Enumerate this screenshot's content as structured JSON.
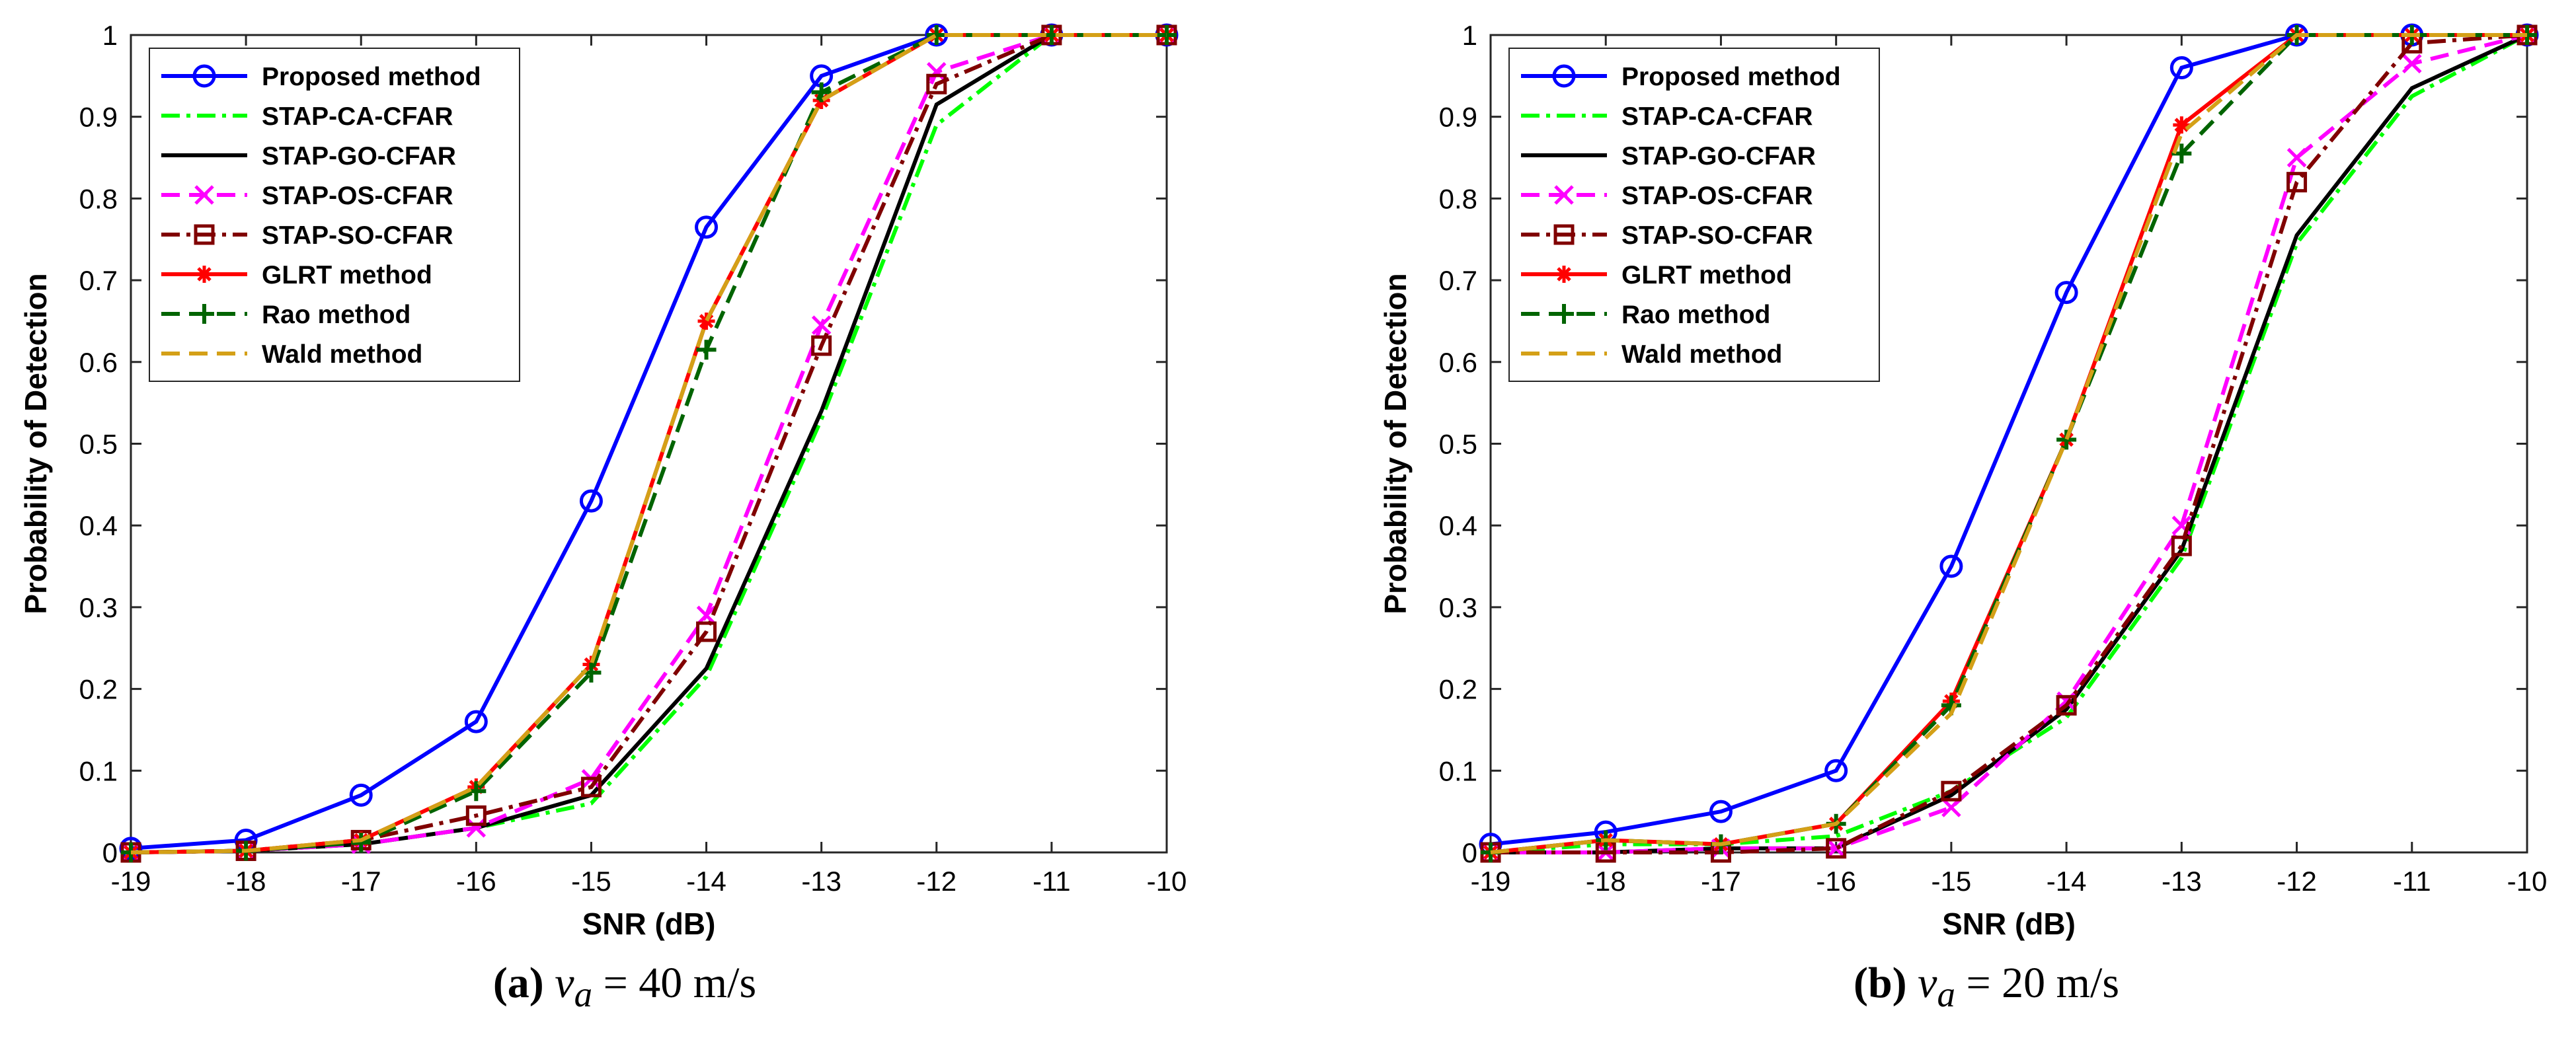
{
  "chart_data": [
    {
      "type": "line",
      "id": "a",
      "xlabel": "SNR (dB)",
      "ylabel": "Probability of Detection",
      "xlim": [
        -19,
        -10
      ],
      "ylim": [
        0,
        1
      ],
      "xticks": [
        "-19",
        "-18",
        "-17",
        "-16",
        "-15",
        "-14",
        "-13",
        "-12",
        "-11",
        "-10"
      ],
      "yticks": [
        "0",
        "0.1",
        "0.2",
        "0.3",
        "0.4",
        "0.5",
        "0.6",
        "0.7",
        "0.8",
        "0.9",
        "1"
      ],
      "legend_position": "top-left",
      "caption": {
        "label": "(a)",
        "math_var": "v",
        "math_sub": "a",
        "equals": " = 40 m/s"
      },
      "x": [
        -19,
        -18,
        -17,
        -16,
        -15,
        -14,
        -13,
        -12,
        -11,
        -10
      ],
      "series": [
        {
          "name": "Proposed method",
          "color": "#0000ff",
          "dash": "solid",
          "marker": "circle",
          "values": [
            0.005,
            0.015,
            0.07,
            0.16,
            0.43,
            0.765,
            0.95,
            1.0,
            1.0,
            1.0
          ]
        },
        {
          "name": "STAP-CA-CFAR",
          "color": "#00ff00",
          "dash": "dashdot",
          "marker": "none",
          "values": [
            0.0,
            0.002,
            0.01,
            0.03,
            0.06,
            0.215,
            0.53,
            0.89,
            1.0,
            1.0
          ]
        },
        {
          "name": "STAP-GO-CFAR",
          "color": "#000000",
          "dash": "solid",
          "marker": "none",
          "values": [
            0.0,
            0.002,
            0.01,
            0.03,
            0.07,
            0.225,
            0.54,
            0.915,
            1.0,
            1.0
          ]
        },
        {
          "name": "STAP-OS-CFAR",
          "color": "#ff00ff",
          "dash": "dash",
          "marker": "x",
          "values": [
            0.0,
            0.002,
            0.01,
            0.03,
            0.09,
            0.29,
            0.645,
            0.955,
            1.0,
            1.0
          ]
        },
        {
          "name": "STAP-SO-CFAR",
          "color": "#800000",
          "dash": "dashdot",
          "marker": "square",
          "values": [
            0.0,
            0.002,
            0.015,
            0.045,
            0.08,
            0.27,
            0.62,
            0.94,
            1.0,
            1.0
          ]
        },
        {
          "name": "GLRT method",
          "color": "#ff0000",
          "dash": "solid",
          "marker": "asterisk",
          "values": [
            0.0,
            0.002,
            0.015,
            0.08,
            0.23,
            0.65,
            0.92,
            1.0,
            1.0,
            1.0
          ]
        },
        {
          "name": "Rao method",
          "color": "#006400",
          "dash": "dash",
          "marker": "plus",
          "values": [
            0.0,
            0.002,
            0.012,
            0.075,
            0.22,
            0.615,
            0.93,
            1.0,
            1.0,
            1.0
          ]
        },
        {
          "name": "Wald method",
          "color": "#d4a017",
          "dash": "dash",
          "marker": "none",
          "values": [
            0.0,
            0.002,
            0.015,
            0.08,
            0.23,
            0.65,
            0.92,
            1.0,
            1.0,
            1.0
          ]
        }
      ]
    },
    {
      "type": "line",
      "id": "b",
      "xlabel": "SNR (dB)",
      "ylabel": "Probability of Detection",
      "xlim": [
        -19,
        -10
      ],
      "ylim": [
        0,
        1
      ],
      "xticks": [
        "-19",
        "-18",
        "-17",
        "-16",
        "-15",
        "-14",
        "-13",
        "-12",
        "-11",
        "-10"
      ],
      "yticks": [
        "0",
        "0.1",
        "0.2",
        "0.3",
        "0.4",
        "0.5",
        "0.6",
        "0.7",
        "0.8",
        "0.9",
        "1"
      ],
      "legend_position": "top-left",
      "caption": {
        "label": "(b)",
        "math_var": "v",
        "math_sub": "a",
        "equals": " = 20 m/s"
      },
      "x": [
        -19,
        -18,
        -17,
        -16,
        -15,
        -14,
        -13,
        -12,
        -11,
        -10
      ],
      "series": [
        {
          "name": "Proposed method",
          "color": "#0000ff",
          "dash": "solid",
          "marker": "circle",
          "values": [
            0.01,
            0.025,
            0.05,
            0.1,
            0.35,
            0.685,
            0.96,
            1.0,
            1.0,
            1.0
          ]
        },
        {
          "name": "STAP-CA-CFAR",
          "color": "#00ff00",
          "dash": "dashdot",
          "marker": "none",
          "values": [
            0.0,
            0.01,
            0.01,
            0.02,
            0.075,
            0.165,
            0.36,
            0.745,
            0.925,
            1.0
          ]
        },
        {
          "name": "STAP-GO-CFAR",
          "color": "#000000",
          "dash": "solid",
          "marker": "none",
          "values": [
            0.0,
            0.0,
            0.005,
            0.005,
            0.07,
            0.175,
            0.37,
            0.755,
            0.935,
            1.0
          ]
        },
        {
          "name": "STAP-OS-CFAR",
          "color": "#ff00ff",
          "dash": "dash",
          "marker": "x",
          "values": [
            0.0,
            0.0,
            0.005,
            0.005,
            0.055,
            0.185,
            0.4,
            0.85,
            0.965,
            1.0
          ]
        },
        {
          "name": "STAP-SO-CFAR",
          "color": "#800000",
          "dash": "dashdot",
          "marker": "square",
          "values": [
            0.0,
            0.0,
            0.0,
            0.005,
            0.075,
            0.18,
            0.375,
            0.82,
            0.99,
            1.0
          ]
        },
        {
          "name": "GLRT method",
          "color": "#ff0000",
          "dash": "solid",
          "marker": "asterisk",
          "values": [
            0.0,
            0.015,
            0.01,
            0.035,
            0.185,
            0.505,
            0.89,
            1.0,
            1.0,
            1.0
          ]
        },
        {
          "name": "Rao method",
          "color": "#006400",
          "dash": "dash",
          "marker": "plus",
          "values": [
            0.0,
            0.015,
            0.01,
            0.035,
            0.18,
            0.505,
            0.855,
            1.0,
            1.0,
            1.0
          ]
        },
        {
          "name": "Wald method",
          "color": "#d4a017",
          "dash": "dash",
          "marker": "none",
          "values": [
            0.0,
            0.015,
            0.01,
            0.035,
            0.17,
            0.505,
            0.88,
            1.0,
            1.0,
            1.0
          ]
        }
      ]
    }
  ]
}
